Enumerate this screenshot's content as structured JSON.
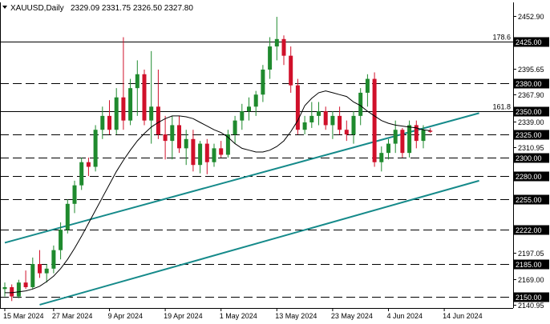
{
  "header": {
    "symbol": "XAUUSD,Daily",
    "ohlc": "2329.09 2331.75 2326.50 2327.80"
  },
  "colors": {
    "bull": "#1f8a2e",
    "bear": "#d0102a",
    "ma": "#000000",
    "trend": "#158a8a",
    "level": "#000000",
    "price_tag_bg": "#000000",
    "price_tag_fg": "#ffffff"
  },
  "chart_data": {
    "type": "candlestick",
    "title": "XAUUSD,Daily",
    "ylim": [
      2140.95,
      2465.0
    ],
    "grid": false,
    "y_ticks": [
      {
        "value": 2452.9,
        "label": "2452.90",
        "tag": false
      },
      {
        "value": 2425.0,
        "label": "2425.00",
        "tag": true
      },
      {
        "value": 2395.65,
        "label": "2395.65",
        "tag": false
      },
      {
        "value": 2380.0,
        "label": "2380.00",
        "tag": true
      },
      {
        "value": 2367.9,
        "label": "2367.90",
        "tag": false
      },
      {
        "value": 2350.0,
        "label": "2350.00",
        "tag": true
      },
      {
        "value": 2339.0,
        "label": "2339.00",
        "tag": false
      },
      {
        "value": 2325.0,
        "label": "2325.00",
        "tag": true
      },
      {
        "value": 2310.95,
        "label": "2310.95",
        "tag": false
      },
      {
        "value": 2300.0,
        "label": "2300.00",
        "tag": true
      },
      {
        "value": 2280.0,
        "label": "2280.00",
        "tag": true
      },
      {
        "value": 2255.0,
        "label": "2255.00",
        "tag": true
      },
      {
        "value": 2222.0,
        "label": "2222.00",
        "tag": true
      },
      {
        "value": 2197.05,
        "label": "2197.05",
        "tag": false
      },
      {
        "value": 2185.0,
        "label": "2185.00",
        "tag": true
      },
      {
        "value": 2169.0,
        "label": "2169.00",
        "tag": false
      },
      {
        "value": 2150.0,
        "label": "2150.00",
        "tag": true
      },
      {
        "value": 2140.95,
        "label": "2140.95",
        "tag": false
      }
    ],
    "x_labels": [
      {
        "label": "15 Mar 2024",
        "index": 0
      },
      {
        "label": "27 Mar 2024",
        "index": 7
      },
      {
        "label": "9 Apr 2024",
        "index": 15
      },
      {
        "label": "19 Apr 2024",
        "index": 23
      },
      {
        "label": "1 May 2024",
        "index": 31
      },
      {
        "label": "13 May 2024",
        "index": 39
      },
      {
        "label": "23 May 2024",
        "index": 47
      },
      {
        "label": "4 Jun 2024",
        "index": 55
      },
      {
        "label": "14 Jun 2024",
        "index": 63
      }
    ],
    "levels": [
      {
        "value": 2425.0,
        "style": "solid",
        "label": "178.6"
      },
      {
        "value": 2380.0,
        "style": "dashed",
        "label": ""
      },
      {
        "value": 2350.0,
        "style": "solid",
        "label": "161.8"
      },
      {
        "value": 2325.0,
        "style": "dashed",
        "label": ""
      },
      {
        "value": 2300.0,
        "style": "dashed",
        "label": ""
      },
      {
        "value": 2280.0,
        "style": "dashed",
        "label": ""
      },
      {
        "value": 2255.0,
        "style": "dashed",
        "label": ""
      },
      {
        "value": 2222.0,
        "style": "dashed",
        "label": ""
      },
      {
        "value": 2185.0,
        "style": "dashed",
        "label": ""
      },
      {
        "value": 2150.0,
        "style": "dashed",
        "label": ""
      }
    ],
    "trendlines": [
      {
        "from": {
          "index": 0,
          "value": 2208
        },
        "to": {
          "index": 68,
          "value": 2348
        }
      },
      {
        "from": {
          "index": 5,
          "value": 2141
        },
        "to": {
          "index": 68,
          "value": 2275
        }
      }
    ],
    "ohlc": [
      [
        2158,
        2165,
        2150,
        2160
      ],
      [
        2160,
        2163,
        2145,
        2150
      ],
      [
        2150,
        2168,
        2148,
        2165
      ],
      [
        2165,
        2178,
        2158,
        2160
      ],
      [
        2160,
        2192,
        2158,
        2185
      ],
      [
        2185,
        2200,
        2170,
        2175
      ],
      [
        2175,
        2185,
        2165,
        2180
      ],
      [
        2180,
        2205,
        2175,
        2200
      ],
      [
        2200,
        2230,
        2190,
        2222
      ],
      [
        2222,
        2255,
        2218,
        2250
      ],
      [
        2250,
        2275,
        2240,
        2270
      ],
      [
        2270,
        2300,
        2265,
        2295
      ],
      [
        2295,
        2300,
        2280,
        2290
      ],
      [
        2290,
        2335,
        2285,
        2330
      ],
      [
        2330,
        2355,
        2320,
        2345
      ],
      [
        2345,
        2362,
        2325,
        2330
      ],
      [
        2330,
        2375,
        2325,
        2365
      ],
      [
        2365,
        2430,
        2330,
        2340
      ],
      [
        2340,
        2385,
        2335,
        2375
      ],
      [
        2375,
        2405,
        2345,
        2390
      ],
      [
        2390,
        2395,
        2335,
        2340
      ],
      [
        2340,
        2415,
        2315,
        2355
      ],
      [
        2355,
        2395,
        2320,
        2325
      ],
      [
        2325,
        2345,
        2298,
        2318
      ],
      [
        2318,
        2345,
        2298,
        2335
      ],
      [
        2335,
        2345,
        2305,
        2310
      ],
      [
        2310,
        2330,
        2292,
        2320
      ],
      [
        2320,
        2330,
        2285,
        2292
      ],
      [
        2292,
        2318,
        2283,
        2315
      ],
      [
        2315,
        2320,
        2282,
        2295
      ],
      [
        2295,
        2315,
        2290,
        2310
      ],
      [
        2310,
        2318,
        2300,
        2303
      ],
      [
        2303,
        2330,
        2300,
        2325
      ],
      [
        2325,
        2345,
        2315,
        2340
      ],
      [
        2340,
        2358,
        2330,
        2350
      ],
      [
        2350,
        2365,
        2340,
        2355
      ],
      [
        2355,
        2372,
        2345,
        2368
      ],
      [
        2368,
        2400,
        2360,
        2395
      ],
      [
        2395,
        2430,
        2385,
        2420
      ],
      [
        2420,
        2452,
        2405,
        2428
      ],
      [
        2428,
        2432,
        2400,
        2410
      ],
      [
        2410,
        2420,
        2370,
        2378
      ],
      [
        2378,
        2385,
        2325,
        2330
      ],
      [
        2330,
        2345,
        2325,
        2338
      ],
      [
        2338,
        2360,
        2332,
        2345
      ],
      [
        2345,
        2360,
        2335,
        2350
      ],
      [
        2350,
        2355,
        2330,
        2335
      ],
      [
        2335,
        2350,
        2320,
        2345
      ],
      [
        2345,
        2355,
        2325,
        2330
      ],
      [
        2330,
        2340,
        2318,
        2325
      ],
      [
        2325,
        2350,
        2315,
        2345
      ],
      [
        2345,
        2375,
        2335,
        2370
      ],
      [
        2370,
        2390,
        2355,
        2385
      ],
      [
        2385,
        2392,
        2290,
        2295
      ],
      [
        2295,
        2312,
        2285,
        2305
      ],
      [
        2305,
        2320,
        2298,
        2315
      ],
      [
        2315,
        2340,
        2305,
        2330
      ],
      [
        2330,
        2332,
        2300,
        2305
      ],
      [
        2305,
        2340,
        2300,
        2335
      ],
      [
        2335,
        2340,
        2310,
        2318
      ],
      [
        2318,
        2335,
        2310,
        2330
      ],
      [
        2329.09,
        2331.75,
        2326.5,
        2327.8
      ]
    ],
    "ma": [
      2154,
      2154,
      2155,
      2156,
      2158,
      2161,
      2166,
      2172,
      2180,
      2190,
      2202,
      2215,
      2229,
      2243,
      2257,
      2271,
      2285,
      2297,
      2308,
      2318,
      2326,
      2333,
      2338,
      2342,
      2345,
      2345,
      2344,
      2342,
      2338,
      2334,
      2330,
      2327,
      2322,
      2315,
      2310,
      2308,
      2306,
      2306,
      2308,
      2312,
      2318,
      2328,
      2340,
      2356,
      2364,
      2370,
      2372,
      2370,
      2368,
      2366,
      2360,
      2356,
      2350,
      2345,
      2340,
      2337,
      2335,
      2334,
      2333,
      2332,
      2330,
      2329
    ]
  }
}
